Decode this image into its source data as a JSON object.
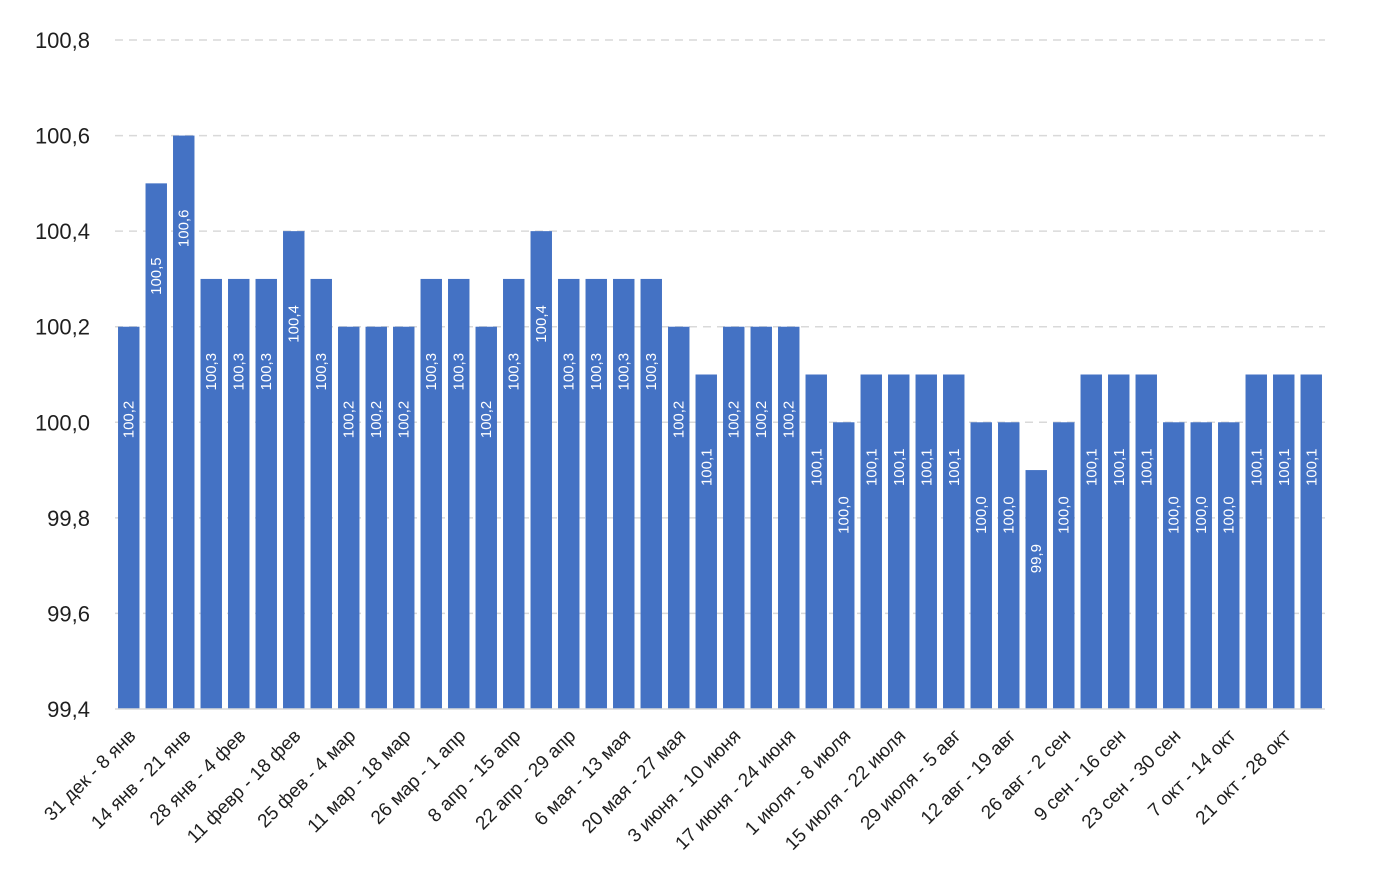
{
  "chart_data": {
    "type": "bar",
    "title": "",
    "xlabel": "",
    "ylabel": "",
    "ylim": [
      99.4,
      100.8
    ],
    "yticks": [
      99.4,
      99.6,
      99.8,
      100.0,
      100.2,
      100.4,
      100.6,
      100.8
    ],
    "ytick_labels": [
      "99,4",
      "99,6",
      "99,8",
      "100,0",
      "100,2",
      "100,4",
      "100,6",
      "100,8"
    ],
    "grid": true,
    "grid_style": "dashed",
    "legend": "none",
    "bar_color": "#4472C4",
    "label_color": "#FFFFFF",
    "categories": [
      "31 дек - 8 янв",
      "",
      "14 янв - 21 янв",
      "",
      "28 янв - 4 фев",
      "",
      "11 февр - 18 фев",
      "",
      "25 фев - 4 мар",
      "",
      "11 мар - 18 мар",
      "",
      "26 мар - 1 апр",
      "",
      "8 апр - 15 апр",
      "",
      "22 апр - 29 апр",
      "",
      "6 мая - 13 мая",
      "",
      "20 мая - 27 мая",
      "",
      "3 июня - 10 июня",
      "",
      "17 июня - 24 июня",
      "",
      "1 июля - 8 июля",
      "",
      "15 июля - 22 июля",
      "",
      "29 июля - 5 авг",
      "",
      "12 авг - 19 авг",
      "",
      "26 авг - 2 сен",
      "",
      "9 сен - 16 сен",
      "",
      "23 сен - 30 сен",
      "",
      "7 окт - 14 окт",
      "",
      "21 окт - 28 окт",
      ""
    ],
    "values": [
      100.2,
      100.5,
      100.6,
      100.3,
      100.3,
      100.3,
      100.4,
      100.3,
      100.2,
      100.2,
      100.2,
      100.3,
      100.3,
      100.2,
      100.3,
      100.4,
      100.3,
      100.3,
      100.3,
      100.3,
      100.2,
      100.1,
      100.2,
      100.2,
      100.2,
      100.1,
      100.0,
      100.1,
      100.1,
      100.1,
      100.1,
      100.0,
      100.0,
      99.9,
      100.0,
      100.1,
      100.1,
      100.1,
      100.0,
      100.0,
      100.0,
      100.1,
      100.1,
      100.1
    ],
    "data_labels": [
      "100,2",
      "100,5",
      "100,6",
      "100,3",
      "100,3",
      "100,3",
      "100,4",
      "100,3",
      "100,2",
      "100,2",
      "100,2",
      "100,3",
      "100,3",
      "100,2",
      "100,3",
      "100,4",
      "100,3",
      "100,3",
      "100,3",
      "100,3",
      "100,2",
      "100,1",
      "100,2",
      "100,2",
      "100,2",
      "100,1",
      "100,0",
      "100,1",
      "100,1",
      "100,1",
      "100,1",
      "100,0",
      "100,0",
      "99,9",
      "100,0",
      "100,1",
      "100,1",
      "100,1",
      "100,0",
      "100,0",
      "100,0",
      "100,1",
      "100,1",
      "100,1"
    ]
  }
}
